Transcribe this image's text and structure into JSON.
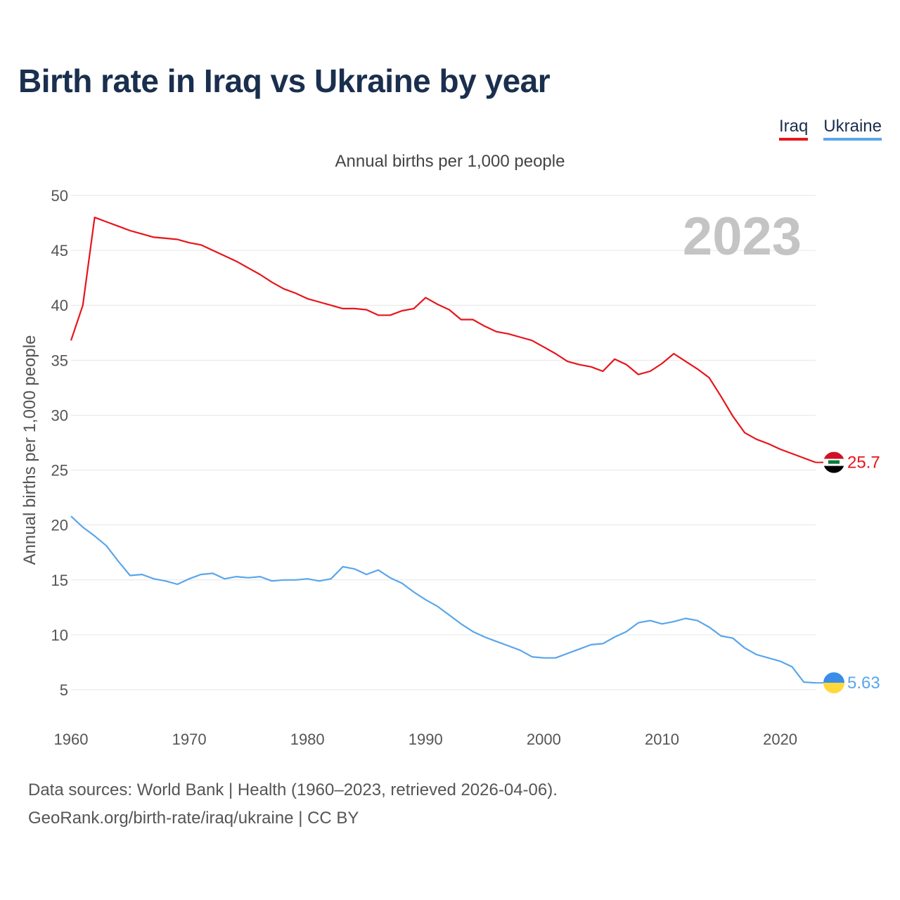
{
  "title": "Birth rate in Iraq vs Ukraine by year",
  "subtitle": "Annual births per 1,000 people",
  "legend": [
    {
      "label": "Iraq",
      "color": "#e8141a"
    },
    {
      "label": "Ukraine",
      "color": "#5aa6ea"
    }
  ],
  "footer": {
    "line1": "Data sources: World Bank | Health (1960–2023, retrieved 2026-04-06).",
    "line2": "GeoRank.org/birth-rate/iraq/ukraine | CC BY"
  },
  "chart_data": {
    "type": "line",
    "title": "Birth rate in Iraq vs Ukraine by year",
    "ylabel": "Annual births per 1,000 people",
    "xlabel": "",
    "year_watermark": "2023",
    "xlim": [
      1960,
      2023
    ],
    "ylim": [
      5,
      50
    ],
    "x_ticks": [
      1960,
      1970,
      1980,
      1990,
      2000,
      2010,
      2020
    ],
    "y_ticks": [
      5,
      10,
      15,
      20,
      25,
      30,
      35,
      40,
      45,
      50
    ],
    "grid": true,
    "x": [
      1960,
      1961,
      1962,
      1963,
      1964,
      1965,
      1966,
      1967,
      1968,
      1969,
      1970,
      1971,
      1972,
      1973,
      1974,
      1975,
      1976,
      1977,
      1978,
      1979,
      1980,
      1981,
      1982,
      1983,
      1984,
      1985,
      1986,
      1987,
      1988,
      1989,
      1990,
      1991,
      1992,
      1993,
      1994,
      1995,
      1996,
      1997,
      1998,
      1999,
      2000,
      2001,
      2002,
      2003,
      2004,
      2005,
      2006,
      2007,
      2008,
      2009,
      2010,
      2011,
      2012,
      2013,
      2014,
      2015,
      2016,
      2017,
      2018,
      2019,
      2020,
      2021,
      2022,
      2023
    ],
    "series": [
      {
        "name": "Iraq",
        "color": "#e8141a",
        "end_label": "25.7",
        "values": [
          36.8,
          40.0,
          48.0,
          47.6,
          47.2,
          46.8,
          46.5,
          46.2,
          46.1,
          46.0,
          45.7,
          45.5,
          45.0,
          44.5,
          44.0,
          43.4,
          42.8,
          42.1,
          41.5,
          41.1,
          40.6,
          40.3,
          40.0,
          39.7,
          39.7,
          39.6,
          39.1,
          39.1,
          39.5,
          39.7,
          40.7,
          40.1,
          39.6,
          38.7,
          38.7,
          38.1,
          37.6,
          37.4,
          37.1,
          36.8,
          36.2,
          35.6,
          34.9,
          34.6,
          34.4,
          34.0,
          35.1,
          34.6,
          33.7,
          34.0,
          34.7,
          35.6,
          34.9,
          34.2,
          33.4,
          31.7,
          29.9,
          28.4,
          27.8,
          27.4,
          26.9,
          26.5,
          26.1,
          25.7
        ]
      },
      {
        "name": "Ukraine",
        "color": "#5aa6ea",
        "end_label": "5.63",
        "values": [
          20.8,
          19.8,
          19.0,
          18.1,
          16.7,
          15.4,
          15.5,
          15.1,
          14.9,
          14.6,
          15.1,
          15.5,
          15.6,
          15.1,
          15.3,
          15.2,
          15.3,
          14.9,
          15.0,
          15.0,
          15.1,
          14.9,
          15.1,
          16.2,
          16.0,
          15.5,
          15.9,
          15.2,
          14.7,
          13.9,
          13.2,
          12.6,
          11.8,
          11.0,
          10.3,
          9.8,
          9.4,
          9.0,
          8.6,
          8.0,
          7.9,
          7.9,
          8.3,
          8.7,
          9.1,
          9.2,
          9.8,
          10.3,
          11.1,
          11.3,
          11.0,
          11.2,
          11.5,
          11.3,
          10.7,
          9.9,
          9.7,
          8.8,
          8.2,
          7.9,
          7.6,
          7.1,
          5.7,
          5.63
        ]
      }
    ]
  }
}
